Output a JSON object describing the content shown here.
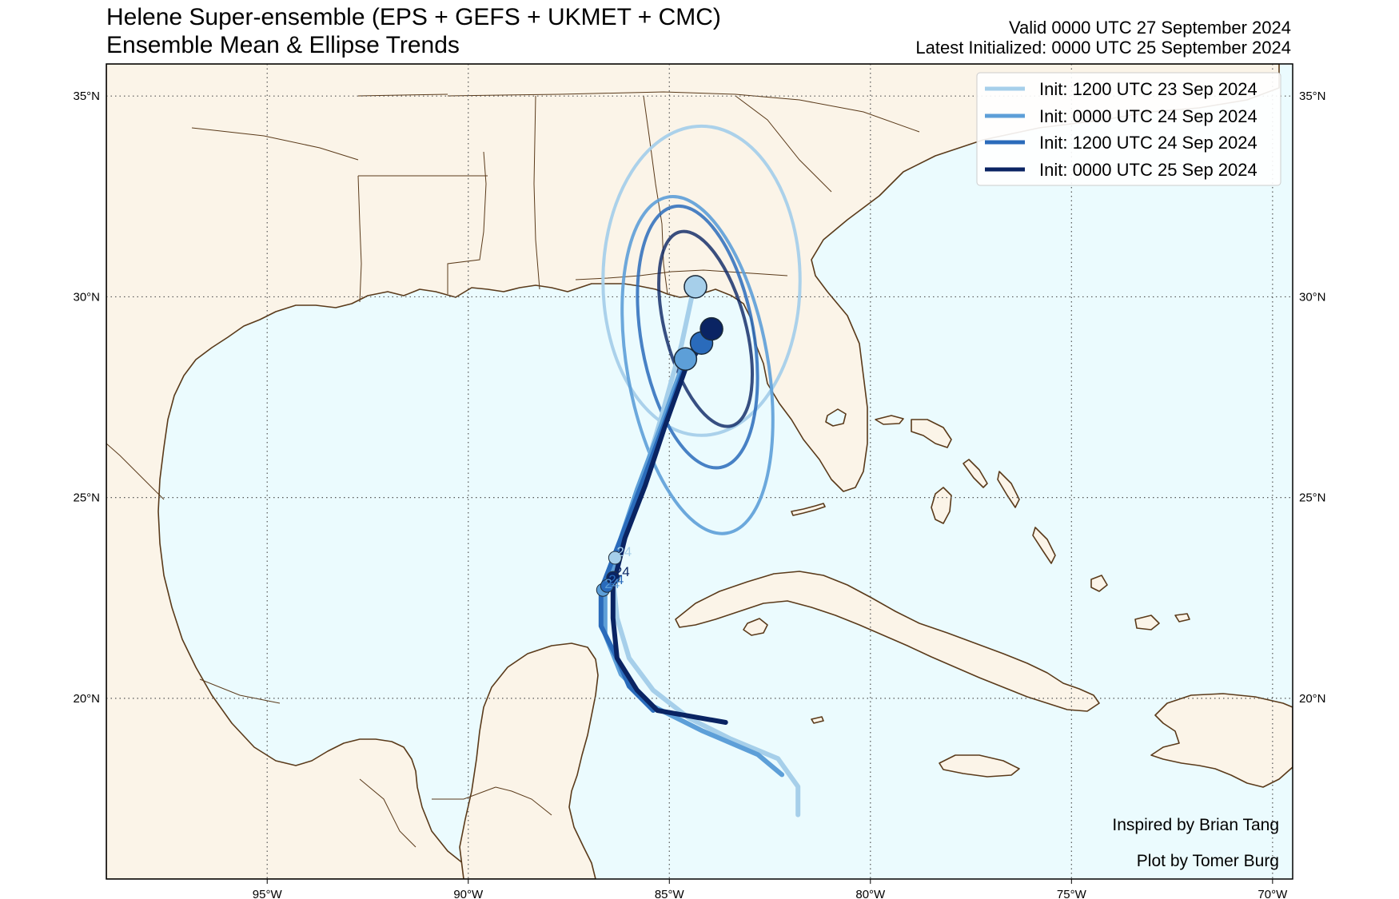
{
  "title": {
    "line1": "Helene Super-ensemble (EPS + GEFS + UKMET + CMC)",
    "line2": "Ensemble Mean & Ellipse Trends"
  },
  "meta": {
    "valid": "Valid 0000 UTC 27 September 2024",
    "latest": "Latest Initialized: 0000 UTC 25 September 2024"
  },
  "map": {
    "lon_range": [
      -99,
      -69.5
    ],
    "lat_range": [
      15.5,
      35.8
    ],
    "colors": {
      "land": "#fbf4e8",
      "ocean": "#ebfbfe",
      "coast": "#5a3a1a",
      "grid": "#555555"
    },
    "lon_ticks": [
      {
        "value": -95,
        "label": "95°W"
      },
      {
        "value": -90,
        "label": "90°W"
      },
      {
        "value": -85,
        "label": "85°W"
      },
      {
        "value": -80,
        "label": "80°W"
      },
      {
        "value": -75,
        "label": "75°W"
      },
      {
        "value": -70,
        "label": "70°W"
      }
    ],
    "lat_ticks": [
      {
        "value": 20,
        "label": "20°N"
      },
      {
        "value": 25,
        "label": "25°N"
      },
      {
        "value": 30,
        "label": "30°N"
      },
      {
        "value": 35,
        "label": "35°N"
      }
    ]
  },
  "series": [
    {
      "name": "Init: 1200 UTC 23 Sep 2024",
      "color": "#a6cfea",
      "track": [
        [
          -81.8,
          17.1
        ],
        [
          -81.8,
          17.8
        ],
        [
          -82.3,
          18.5
        ],
        [
          -83.5,
          19.0
        ],
        [
          -84.5,
          19.5
        ],
        [
          -85.4,
          20.2
        ],
        [
          -86.0,
          21.0
        ],
        [
          -86.3,
          22.0
        ],
        [
          -86.4,
          23.0
        ],
        [
          -86.3,
          23.5
        ],
        [
          -85.8,
          25.0
        ],
        [
          -85.2,
          27.0
        ],
        [
          -84.7,
          28.8
        ],
        [
          -84.4,
          30.2
        ]
      ],
      "point": [
        -84.35,
        30.25
      ],
      "label_point": [
        -86.35,
        23.5
      ],
      "label": "24",
      "ellipse": {
        "center": [
          -84.2,
          30.4
        ],
        "rx": 2.45,
        "ry": 3.85
      }
    },
    {
      "name": "Init: 0000 UTC 24 Sep 2024",
      "color": "#5d9fd8",
      "track": [
        [
          -82.2,
          18.1
        ],
        [
          -82.8,
          18.6
        ],
        [
          -84.2,
          19.2
        ],
        [
          -85.4,
          19.8
        ],
        [
          -86.2,
          20.6
        ],
        [
          -86.6,
          21.6
        ],
        [
          -86.6,
          22.6
        ],
        [
          -86.2,
          24.0
        ],
        [
          -85.8,
          25.2
        ],
        [
          -85.2,
          26.8
        ],
        [
          -84.6,
          28.5
        ]
      ],
      "point": [
        -84.6,
        28.45
      ],
      "label_point": [
        -86.65,
        22.7
      ],
      "label": "24",
      "ellipse": {
        "center": [
          -84.3,
          28.3
        ],
        "rx": 1.75,
        "ry": 4.25,
        "rotation": -10
      }
    },
    {
      "name": "Init: 1200 UTC 24 Sep 2024",
      "color": "#2a6bbb",
      "track": [
        [
          -85.4,
          19.7
        ],
        [
          -86.0,
          20.3
        ],
        [
          -86.3,
          21.0
        ],
        [
          -86.7,
          21.8
        ],
        [
          -86.7,
          22.7
        ],
        [
          -86.2,
          24.0
        ],
        [
          -85.7,
          25.3
        ],
        [
          -85.1,
          26.9
        ],
        [
          -84.6,
          28.3
        ],
        [
          -84.2,
          28.8
        ]
      ],
      "point": [
        -84.2,
        28.85
      ],
      "label_point": [
        -86.55,
        22.8
      ],
      "label": "24",
      "ellipse": {
        "center": [
          -84.3,
          29.0
        ],
        "rx": 1.4,
        "ry": 3.3,
        "rotation": -10
      }
    },
    {
      "name": "Init: 0000 UTC 25 Sep 2024",
      "color": "#0a2463",
      "track": [
        [
          -83.6,
          19.4
        ],
        [
          -85.3,
          19.7
        ],
        [
          -85.8,
          20.2
        ],
        [
          -86.3,
          21.0
        ],
        [
          -86.4,
          22.0
        ],
        [
          -86.4,
          22.8
        ],
        [
          -86.1,
          24.0
        ],
        [
          -85.6,
          25.3
        ],
        [
          -85.1,
          26.8
        ],
        [
          -84.6,
          28.2
        ],
        [
          -84.0,
          29.1
        ]
      ],
      "point": [
        -83.95,
        29.2
      ],
      "label_point": [
        -86.4,
        23.0
      ],
      "label": "24",
      "ellipse": {
        "center": [
          -84.1,
          29.2
        ],
        "rx": 1.0,
        "ry": 2.5,
        "rotation": -15
      }
    }
  ],
  "credits": {
    "inspired": "Inspired by Brian Tang",
    "plot": "Plot by Tomer Burg"
  }
}
